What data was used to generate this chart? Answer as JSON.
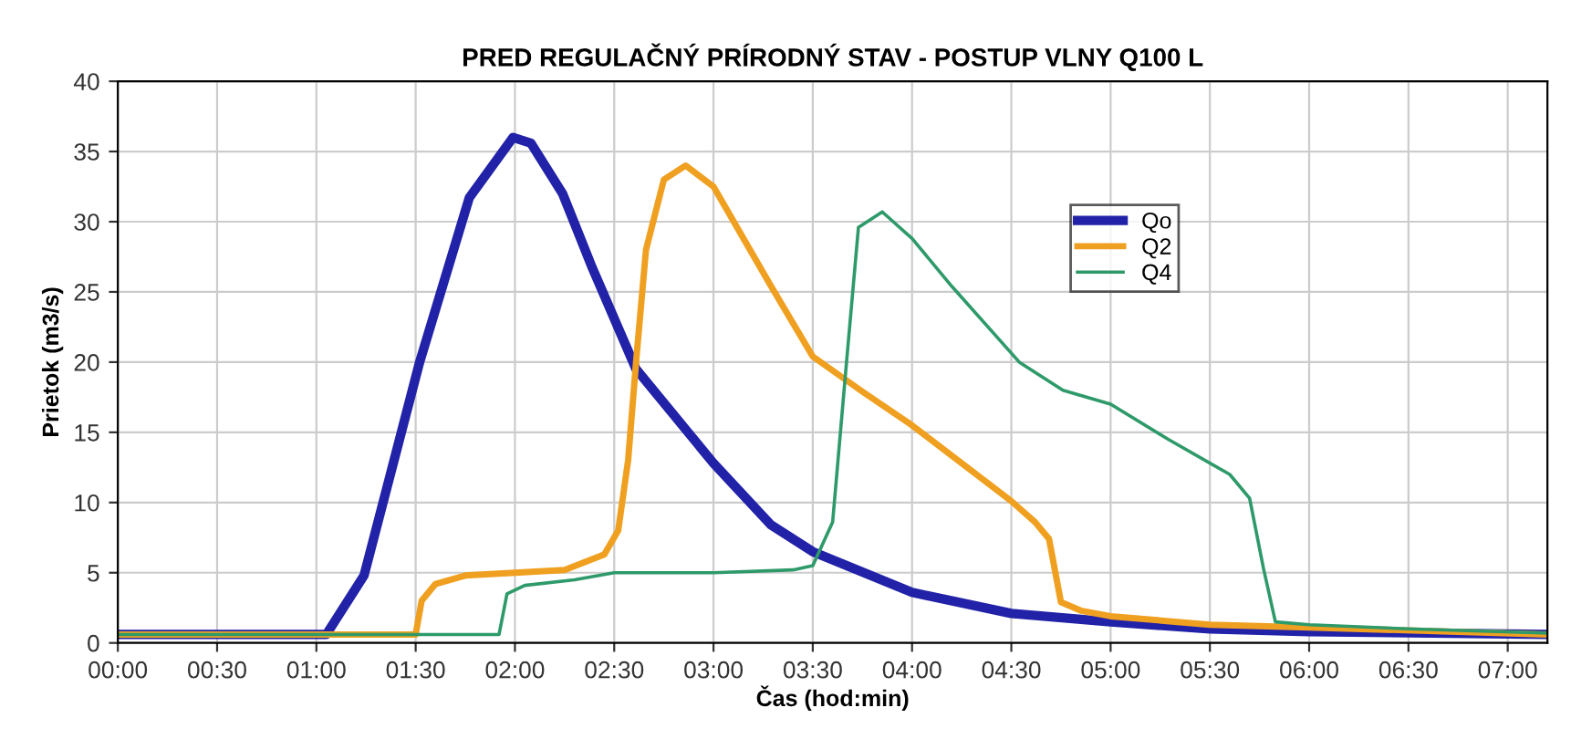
{
  "chart_data": {
    "type": "line",
    "title": "PRED REGULAČNÝ PRÍRODNÝ STAV - POSTUP VLNY Q100 L",
    "xlabel": "Čas (hod:min)",
    "ylabel": "Prietok (m3/s)",
    "xlim": [
      0,
      7.2
    ],
    "ylim": [
      0,
      40
    ],
    "xticks": [
      {
        "value": 0,
        "label": "00:00"
      },
      {
        "value": 0.5,
        "label": "00:30"
      },
      {
        "value": 1,
        "label": "01:00"
      },
      {
        "value": 1.5,
        "label": "01:30"
      },
      {
        "value": 2,
        "label": "02:00"
      },
      {
        "value": 2.5,
        "label": "02:30"
      },
      {
        "value": 3,
        "label": "03:00"
      },
      {
        "value": 3.5,
        "label": "03:30"
      },
      {
        "value": 4,
        "label": "04:00"
      },
      {
        "value": 4.5,
        "label": "04:30"
      },
      {
        "value": 5,
        "label": "05:00"
      },
      {
        "value": 5.5,
        "label": "05:30"
      },
      {
        "value": 6,
        "label": "06:00"
      },
      {
        "value": 6.5,
        "label": "06:30"
      },
      {
        "value": 7,
        "label": "07:00"
      }
    ],
    "yticks": [
      0,
      5,
      10,
      15,
      20,
      25,
      30,
      35,
      40
    ],
    "grid": true,
    "legend": "top right",
    "marker": "none",
    "line_style": "solid",
    "series": [
      {
        "name": "Qo",
        "color": "#2222a8",
        "x": [
          0,
          1.05,
          1.24,
          1.52,
          1.77,
          1.99,
          2.08,
          2.24,
          2.39,
          2.61,
          3.0,
          3.29,
          3.5,
          4.0,
          4.5,
          5.0,
          5.5,
          6.0,
          7.2
        ],
        "values": [
          0.6,
          0.6,
          4.8,
          20,
          31.7,
          36,
          35.6,
          32,
          26.7,
          19.5,
          12.8,
          8.4,
          6.5,
          3.6,
          2.1,
          1.5,
          1.0,
          0.8,
          0.6
        ]
      },
      {
        "name": "Q2",
        "color": "#f0a020",
        "x": [
          0,
          1.5,
          1.53,
          1.6,
          1.75,
          2.0,
          2.25,
          2.45,
          2.52,
          2.57,
          2.61,
          2.66,
          2.75,
          2.86,
          3.0,
          3.29,
          3.5,
          3.75,
          4.0,
          4.5,
          4.62,
          4.69,
          4.75,
          4.85,
          5.0,
          5.5,
          6.0,
          7.2
        ],
        "values": [
          0.6,
          0.6,
          3,
          4.2,
          4.8,
          5,
          5.2,
          6.3,
          8,
          13,
          20,
          28,
          33,
          34,
          32.5,
          25.4,
          20.4,
          17.9,
          15.5,
          10.1,
          8.6,
          7.4,
          2.9,
          2.3,
          1.9,
          1.3,
          1.1,
          0.6
        ]
      },
      {
        "name": "Q4",
        "color": "#2e9a6a",
        "x": [
          0,
          1.92,
          1.96,
          2.05,
          2.3,
          2.5,
          3.0,
          3.4,
          3.5,
          3.6,
          3.67,
          3.73,
          3.85,
          4.0,
          4.2,
          4.54,
          4.76,
          5.0,
          5.29,
          5.6,
          5.7,
          5.77,
          5.83,
          6.0,
          6.5,
          7.2
        ],
        "values": [
          0.6,
          0.6,
          3.5,
          4.1,
          4.5,
          5,
          5,
          5.2,
          5.5,
          8.6,
          20,
          29.6,
          30.7,
          28.8,
          25.4,
          20,
          18,
          17,
          14.5,
          12,
          10.3,
          5.3,
          1.5,
          1.3,
          1.0,
          0.7
        ]
      }
    ]
  }
}
